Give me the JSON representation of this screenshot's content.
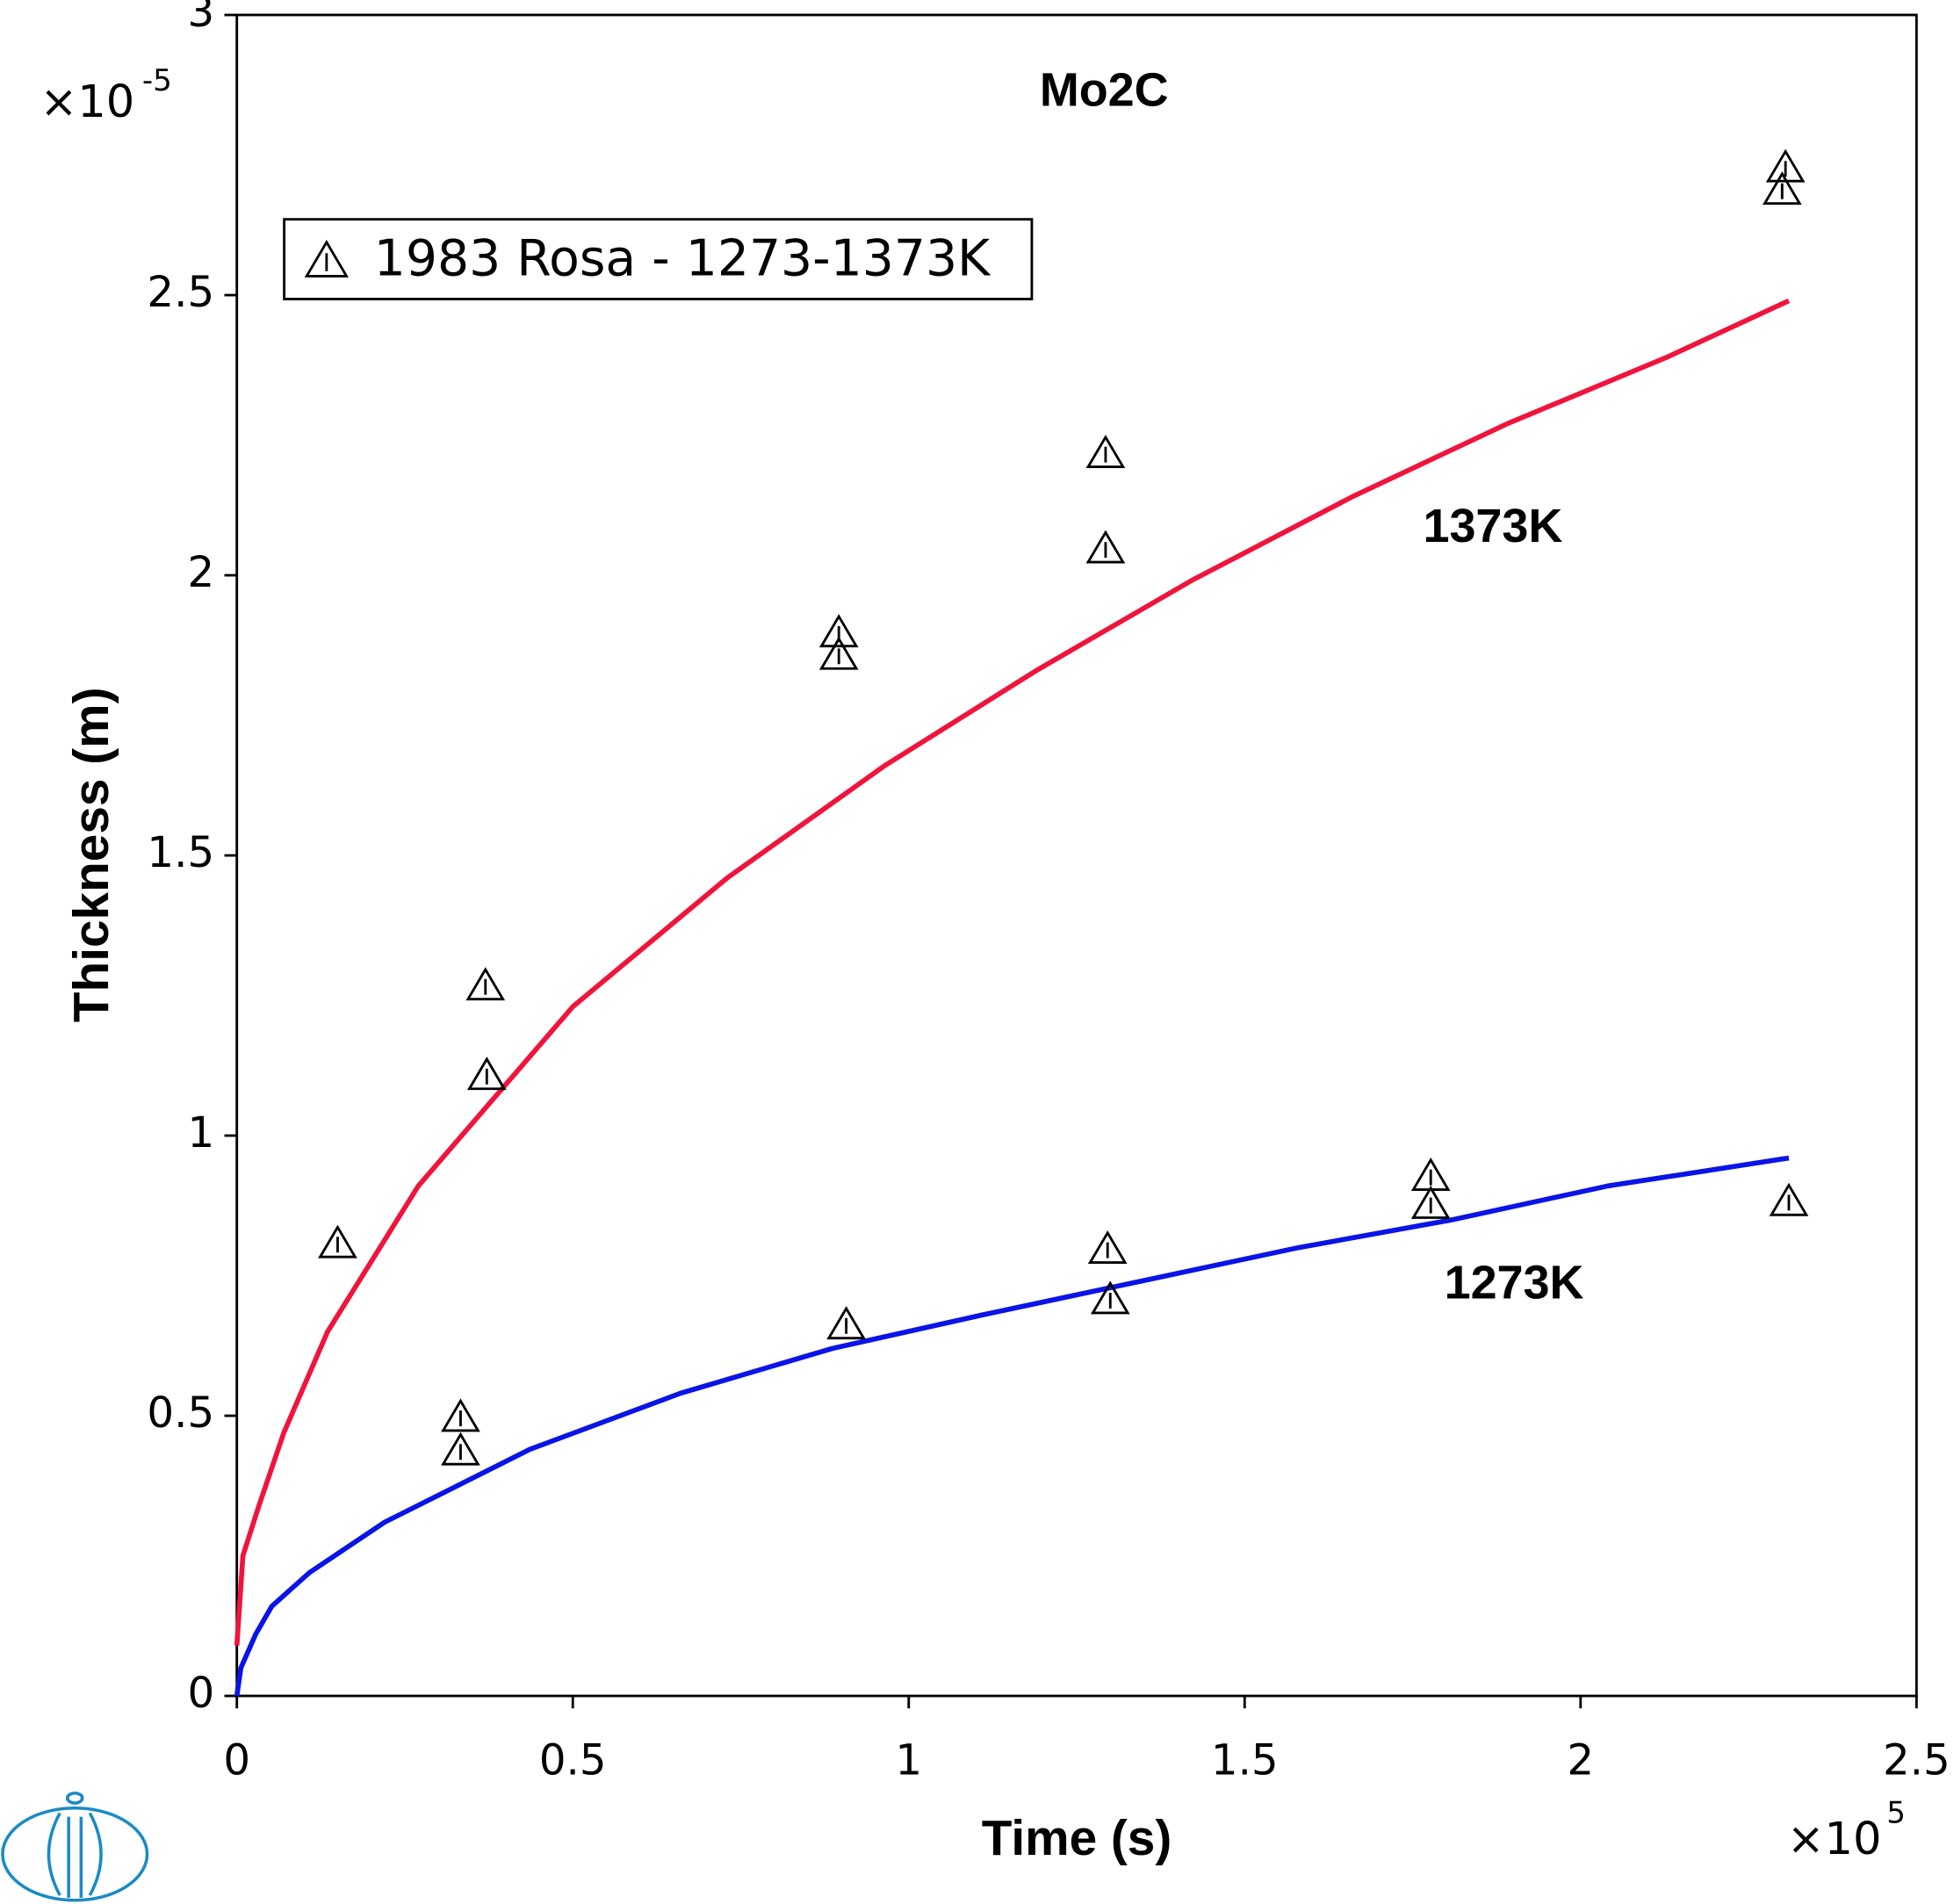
{
  "chart_data": {
    "type": "line",
    "title": "Mo2C",
    "x_label": "Time (s)",
    "y_label": "Thickness (m)",
    "x_multiplier": {
      "base": "×10",
      "exponent": "5"
    },
    "y_multiplier": {
      "base": "×10",
      "exponent": "-5"
    },
    "xlim": [
      0,
      2.5
    ],
    "ylim": [
      0,
      3
    ],
    "xticks": [
      0,
      0.5,
      1,
      1.5,
      2,
      2.5
    ],
    "yticks": [
      0,
      0.5,
      1,
      1.5,
      2,
      2.5,
      3
    ],
    "legend": "upper left",
    "series": [
      {
        "name": "1373K",
        "type": "line",
        "color": "#f0143c",
        "x": [
          0,
          0.009,
          0.033,
          0.07,
          0.135,
          0.27,
          0.5,
          0.73,
          0.964,
          1.19,
          1.42,
          1.66,
          1.89,
          2.13,
          2.31
        ],
        "values": [
          0.09,
          0.25,
          0.34,
          0.47,
          0.65,
          0.91,
          1.23,
          1.46,
          1.66,
          1.83,
          1.99,
          2.14,
          2.27,
          2.39,
          2.49
        ]
      },
      {
        "name": "1273K",
        "type": "line",
        "color": "#0a14e6",
        "x": [
          0,
          0.006,
          0.028,
          0.052,
          0.108,
          0.22,
          0.436,
          0.66,
          0.886,
          1.11,
          1.345,
          1.58,
          1.81,
          2.04,
          2.31
        ],
        "values": [
          0,
          0.05,
          0.11,
          0.16,
          0.22,
          0.31,
          0.44,
          0.54,
          0.62,
          0.68,
          0.74,
          0.8,
          0.85,
          0.91,
          0.96
        ]
      },
      {
        "name": "1983 Rosa - 1273-1373K",
        "type": "scatter",
        "color": "#000000",
        "marker": "triangle",
        "x": [
          0.15,
          0.37,
          0.372,
          0.333,
          0.333,
          0.896,
          0.896,
          0.907,
          1.293,
          1.293,
          1.296,
          1.3,
          1.777,
          1.777,
          2.305,
          2.3,
          2.31
        ],
        "values": [
          0.81,
          1.27,
          1.11,
          0.5,
          0.44,
          1.9,
          1.86,
          0.665,
          2.22,
          2.05,
          0.8,
          0.71,
          0.93,
          0.88,
          2.73,
          2.69,
          0.885
        ]
      }
    ]
  }
}
